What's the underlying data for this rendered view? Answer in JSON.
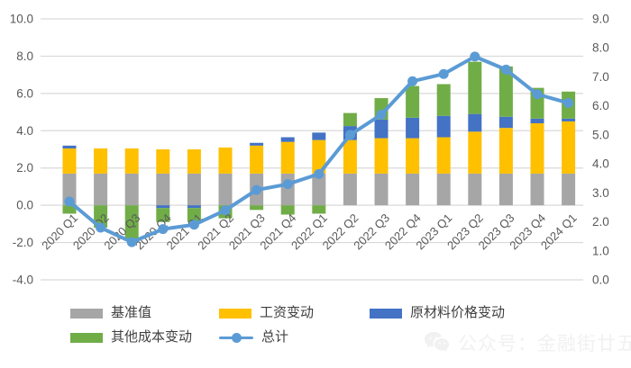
{
  "chart_data": {
    "type": "combo-stacked-bar-line",
    "title": "",
    "categories": [
      "2020 Q1",
      "2020 Q2",
      "2020 Q3",
      "2020 Q4",
      "2021 Q1",
      "2021 Q2",
      "2021 Q3",
      "2021 Q4",
      "2022 Q1",
      "2022 Q2",
      "2022 Q3",
      "2022 Q4",
      "2023 Q1",
      "2023 Q2",
      "2023 Q3",
      "2023 Q4",
      "2024 Q1"
    ],
    "bar_series": [
      {
        "name": "基准值",
        "color": "#A6A6A6",
        "values": [
          1.7,
          1.7,
          1.7,
          1.7,
          1.7,
          1.7,
          1.7,
          1.7,
          1.7,
          1.7,
          1.7,
          1.7,
          1.7,
          1.7,
          1.7,
          1.7,
          1.7
        ]
      },
      {
        "name": "工资变动",
        "color": "#FFC000",
        "values": [
          1.35,
          1.35,
          1.35,
          1.3,
          1.3,
          1.4,
          1.5,
          1.7,
          1.8,
          1.8,
          1.9,
          1.9,
          1.95,
          2.25,
          2.45,
          2.7,
          2.8
        ]
      },
      {
        "name": "原材料价格变动",
        "color": "#4472C4",
        "values": [
          0.15,
          0,
          0,
          -0.15,
          -0.15,
          0,
          0.15,
          0.25,
          0.4,
          0.75,
          1.0,
          1.1,
          1.15,
          0.95,
          0.6,
          0.25,
          0.15
        ]
      },
      {
        "name": "其他成本变动",
        "color": "#70AD47",
        "values": [
          -0.45,
          -1.2,
          -1.8,
          -0.75,
          -0.75,
          -0.7,
          -0.25,
          -0.5,
          -0.45,
          0.7,
          1.15,
          1.7,
          1.7,
          2.8,
          2.7,
          1.65,
          1.45
        ]
      }
    ],
    "line_series": {
      "name": "总计",
      "color": "#5B9BD5",
      "axis": "right",
      "values": [
        2.7,
        1.8,
        1.3,
        1.75,
        1.9,
        2.4,
        3.1,
        3.3,
        3.65,
        5.0,
        5.7,
        6.85,
        7.1,
        7.7,
        7.25,
        6.4,
        6.1
      ]
    },
    "left_axis": {
      "min": -4,
      "max": 10,
      "tick_step": 2,
      "tick_labels": [
        "10.0",
        "8.0",
        "6.0",
        "4.0",
        "2.0",
        "0.0",
        "-2.0",
        "-4.0"
      ]
    },
    "right_axis": {
      "min": 0,
      "max": 9,
      "tick_step": 1,
      "tick_labels": [
        "9.0",
        "8.0",
        "7.0",
        "6.0",
        "5.0",
        "4.0",
        "3.0",
        "2.0",
        "1.0",
        "0.0"
      ]
    },
    "grid": true,
    "legend_position": "bottom",
    "gridline_color": "#D9D9D9",
    "axis_text_color": "#595959"
  },
  "legend": {
    "rows": [
      [
        {
          "label": "基准值",
          "color": "#A6A6A6",
          "symbol": "bar"
        },
        {
          "label": "工资变动",
          "color": "#FFC000",
          "symbol": "bar"
        },
        {
          "label": "原材料价格变动",
          "color": "#4472C4",
          "symbol": "bar"
        }
      ],
      [
        {
          "label": "其他成本变动",
          "color": "#70AD47",
          "symbol": "bar"
        },
        {
          "label": "总计",
          "color": "#5B9BD5",
          "symbol": "line-marker"
        }
      ]
    ]
  },
  "watermark": {
    "icon": "wechat-icon",
    "text": "公众号：金融街廿五"
  }
}
